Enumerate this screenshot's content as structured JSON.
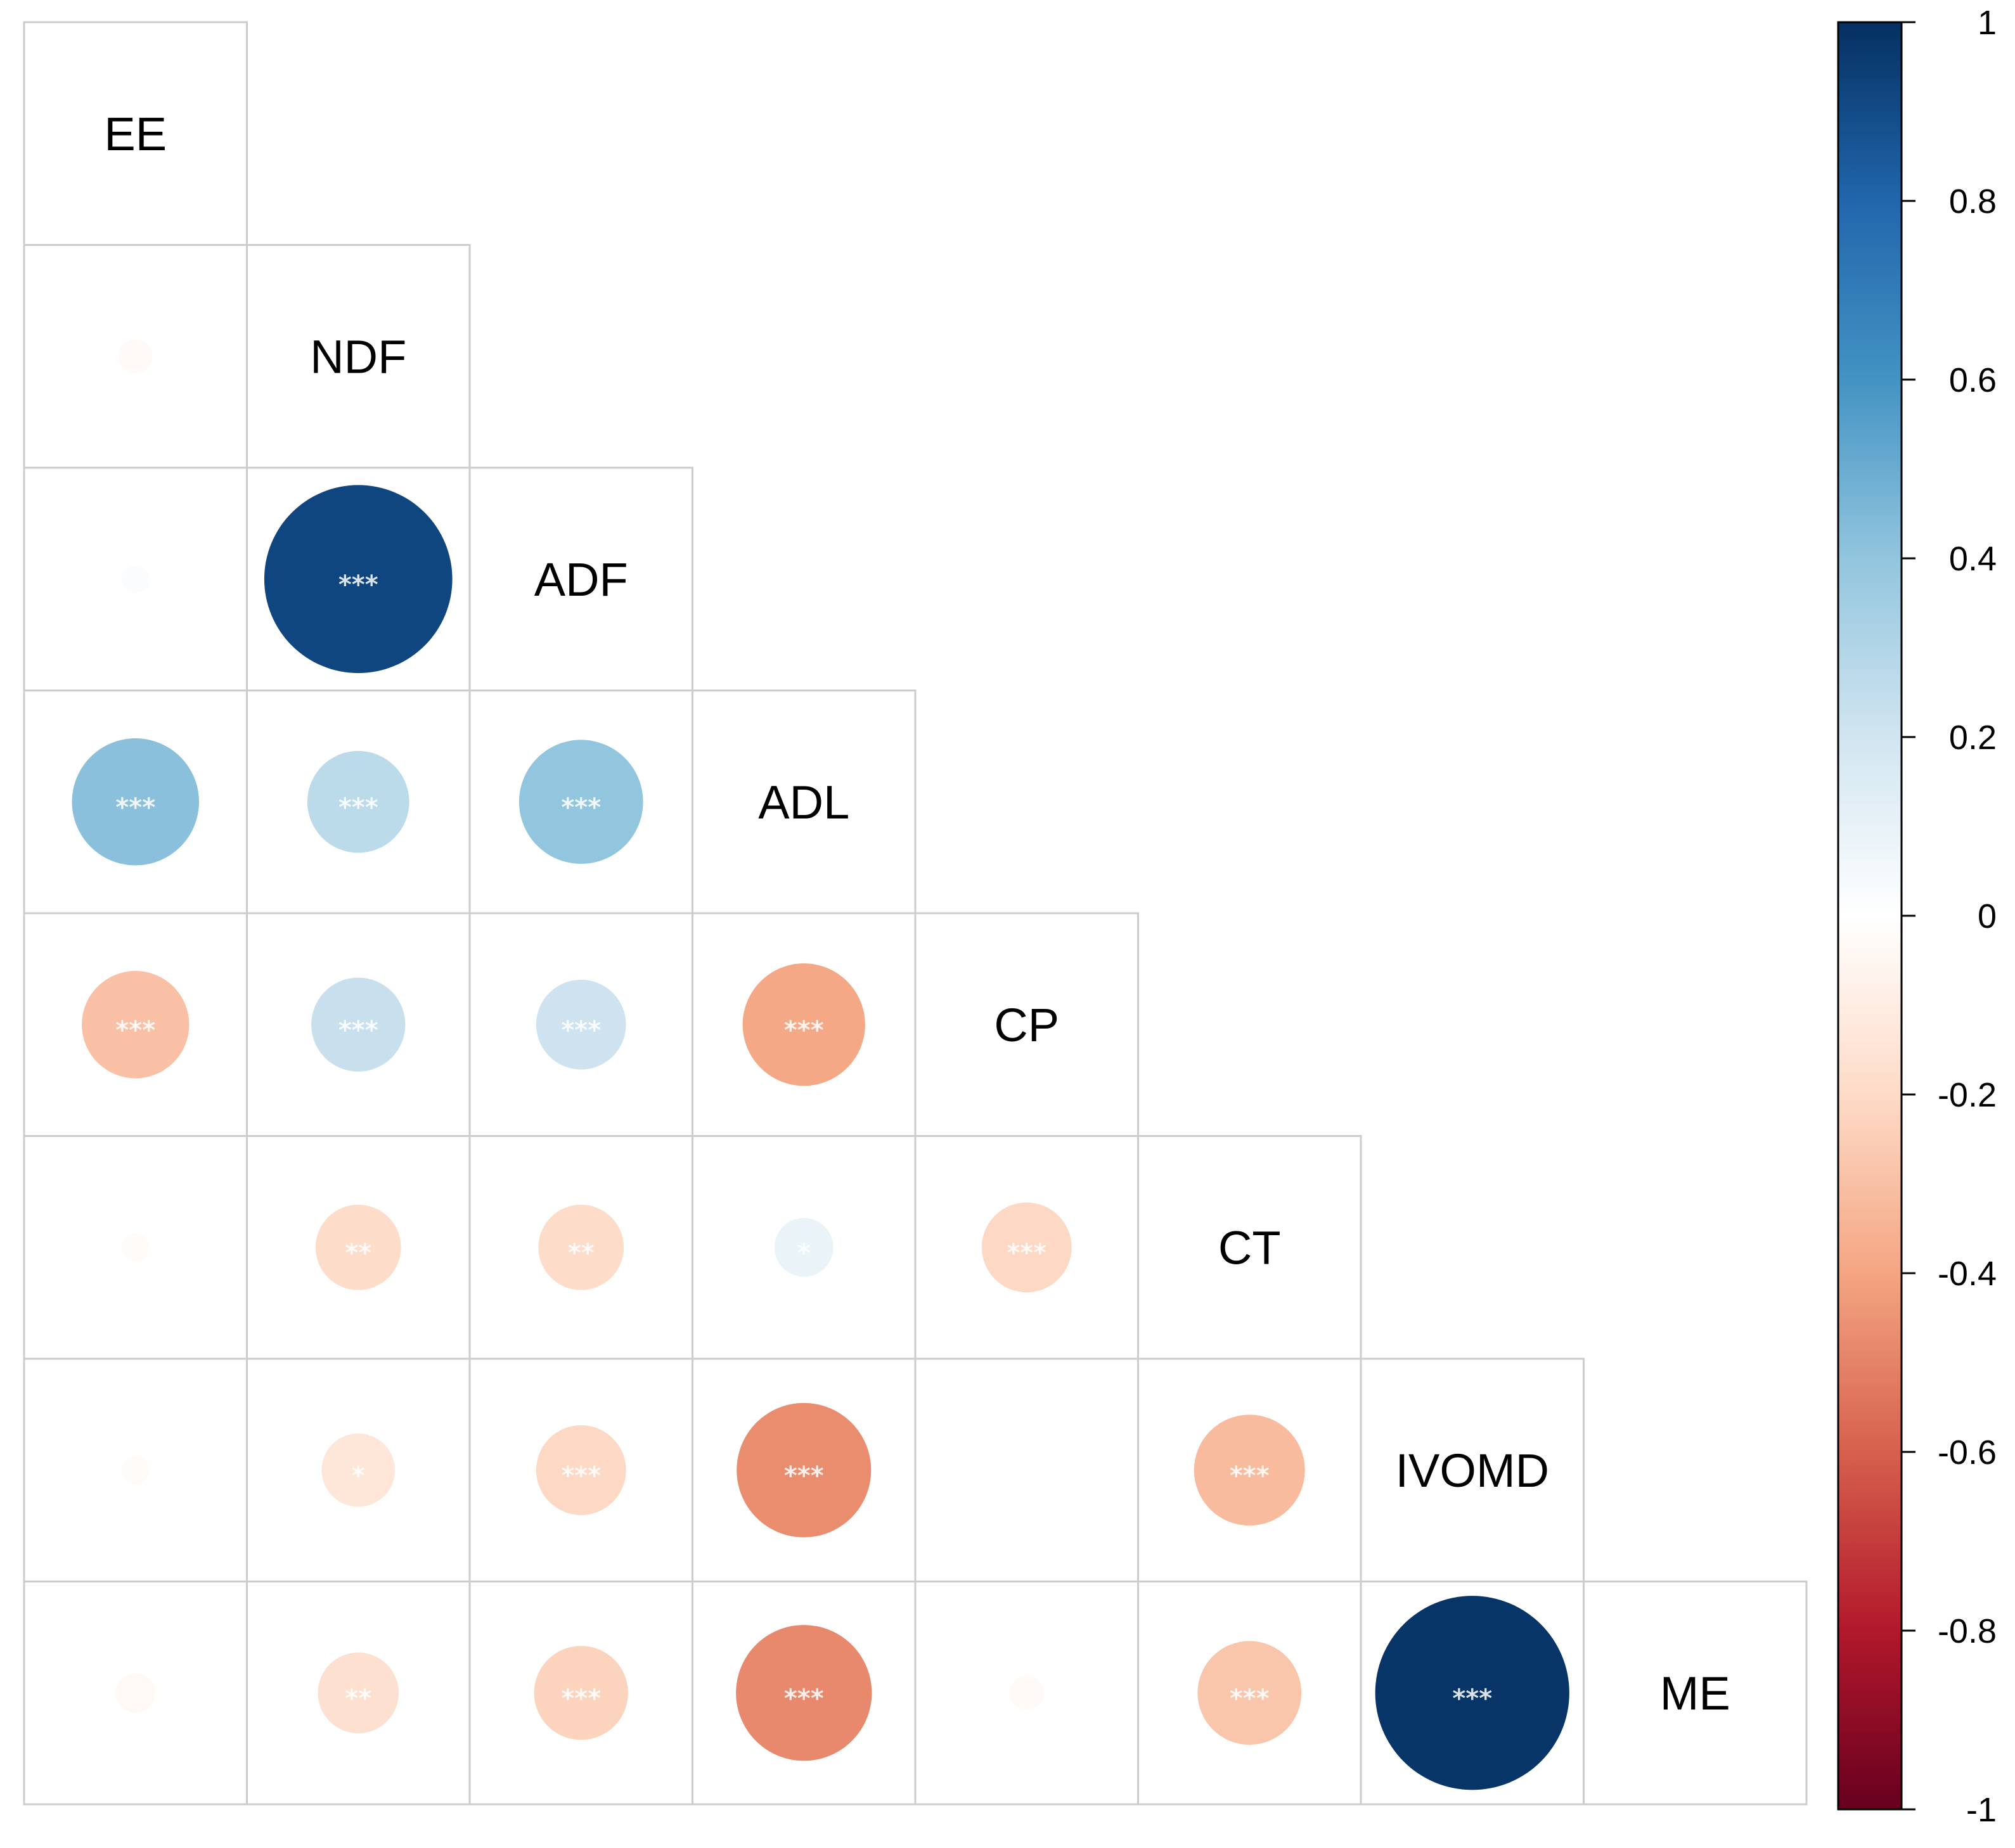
{
  "chart_data": {
    "type": "correlogram",
    "subtype": "lower-triangle circle correlation matrix",
    "variables": [
      "EE",
      "NDF",
      "ADF",
      "ADL",
      "CP",
      "CT",
      "IVOMD",
      "ME"
    ],
    "cells": [
      {
        "row": "NDF",
        "col": "EE",
        "r": -0.03,
        "sig": ""
      },
      {
        "row": "ADF",
        "col": "EE",
        "r": 0.02,
        "sig": ""
      },
      {
        "row": "ADF",
        "col": "NDF",
        "r": 0.92,
        "sig": "***"
      },
      {
        "row": "ADL",
        "col": "EE",
        "r": 0.42,
        "sig": "***"
      },
      {
        "row": "ADL",
        "col": "NDF",
        "r": 0.27,
        "sig": "***"
      },
      {
        "row": "ADL",
        "col": "ADF",
        "r": 0.4,
        "sig": "***"
      },
      {
        "row": "CP",
        "col": "EE",
        "r": -0.3,
        "sig": "***"
      },
      {
        "row": "CP",
        "col": "NDF",
        "r": 0.23,
        "sig": "***"
      },
      {
        "row": "CP",
        "col": "ADF",
        "r": 0.21,
        "sig": "***"
      },
      {
        "row": "CP",
        "col": "ADL",
        "r": -0.39,
        "sig": "***"
      },
      {
        "row": "CT",
        "col": "EE",
        "r": -0.02,
        "sig": ""
      },
      {
        "row": "CT",
        "col": "NDF",
        "r": -0.19,
        "sig": "**"
      },
      {
        "row": "CT",
        "col": "ADF",
        "r": -0.19,
        "sig": "**"
      },
      {
        "row": "CT",
        "col": "ADL",
        "r": 0.09,
        "sig": "*"
      },
      {
        "row": "CT",
        "col": "CP",
        "r": -0.21,
        "sig": "***"
      },
      {
        "row": "IVOMD",
        "col": "EE",
        "r": -0.02,
        "sig": ""
      },
      {
        "row": "IVOMD",
        "col": "NDF",
        "r": -0.14,
        "sig": "*"
      },
      {
        "row": "IVOMD",
        "col": "ADF",
        "r": -0.21,
        "sig": "***"
      },
      {
        "row": "IVOMD",
        "col": "ADL",
        "r": -0.47,
        "sig": "***"
      },
      {
        "row": "IVOMD",
        "col": "CP",
        "r": 0.0,
        "sig": ""
      },
      {
        "row": "IVOMD",
        "col": "CT",
        "r": -0.32,
        "sig": "***"
      },
      {
        "row": "ME",
        "col": "EE",
        "r": -0.04,
        "sig": ""
      },
      {
        "row": "ME",
        "col": "NDF",
        "r": -0.17,
        "sig": "**"
      },
      {
        "row": "ME",
        "col": "ADF",
        "r": -0.23,
        "sig": "***"
      },
      {
        "row": "ME",
        "col": "ADL",
        "r": -0.48,
        "sig": "***"
      },
      {
        "row": "ME",
        "col": "CP",
        "r": -0.03,
        "sig": ""
      },
      {
        "row": "ME",
        "col": "CT",
        "r": -0.28,
        "sig": "***"
      },
      {
        "row": "ME",
        "col": "IVOMD",
        "r": 0.98,
        "sig": "***"
      }
    ],
    "colorbar": {
      "range": [
        -1,
        1
      ],
      "tick_labels": [
        "1",
        "0.8",
        "0.6",
        "0.4",
        "0.2",
        "0",
        "-0.2",
        "-0.4",
        "-0.6",
        "-0.8",
        "-1"
      ],
      "tick_values": [
        1,
        0.8,
        0.6,
        0.4,
        0.2,
        0,
        -0.2,
        -0.4,
        -0.6,
        -0.8,
        -1
      ],
      "colors_low_to_high": [
        "#67001f",
        "#b2182b",
        "#d6604d",
        "#f4a582",
        "#fddbc7",
        "#ffffff",
        "#d1e5f0",
        "#92c5de",
        "#4393c3",
        "#2166ac",
        "#053061"
      ]
    },
    "title": "",
    "xlabel": "",
    "ylabel": ""
  }
}
